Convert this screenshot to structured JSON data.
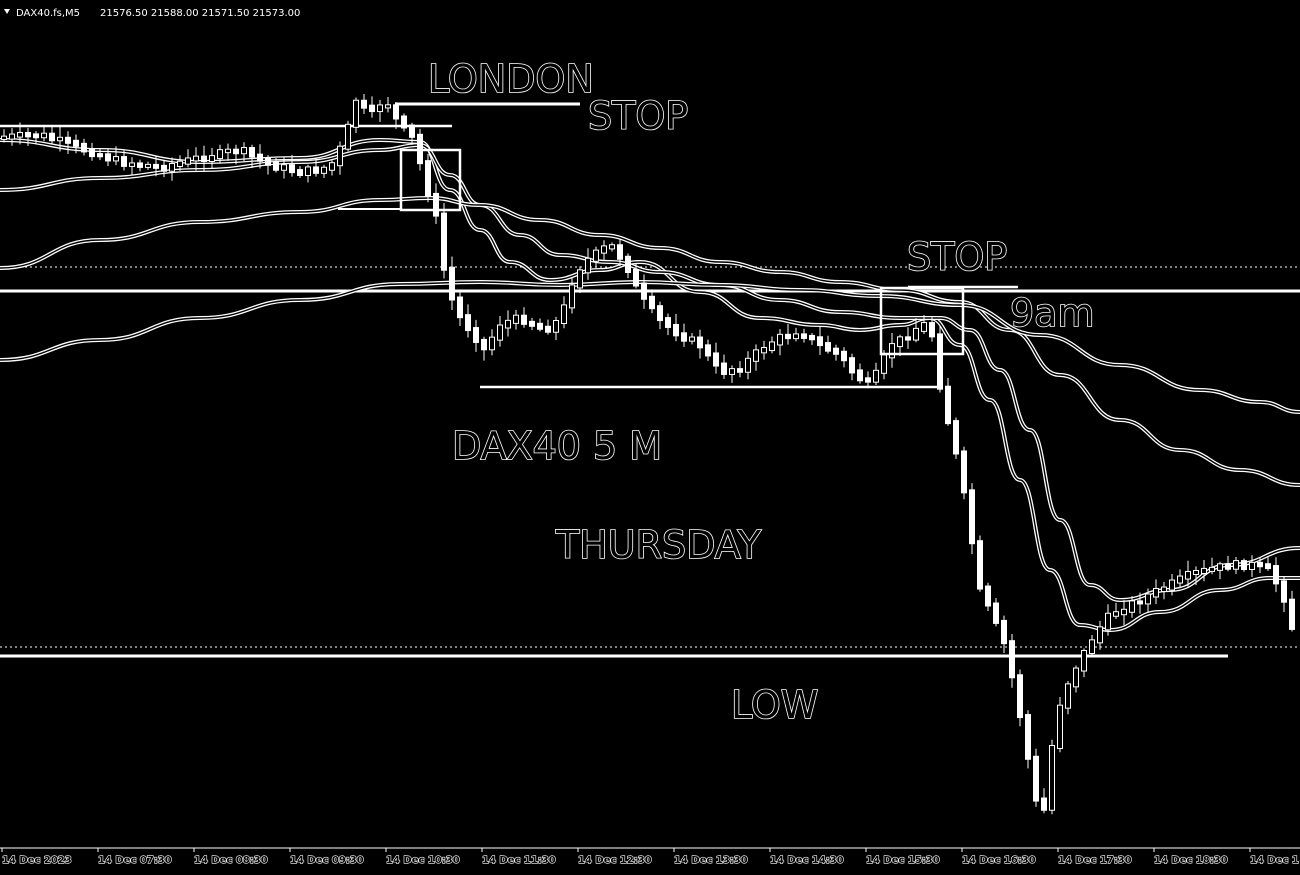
{
  "header": {
    "symbol": "DAX40.fs,M5",
    "ohlc": "21576.50 21588.00 21571.50 21573.00"
  },
  "chart_data": {
    "type": "candlestick",
    "title": "DAX40 5 M",
    "subtitle": "THURSDAY",
    "instrument": "DAX40",
    "timeframe": "M5",
    "x_ticks": [
      "14 Dec 2023",
      "14 Dec 07:30",
      "14 Dec 08:30",
      "14 Dec 09:30",
      "14 Dec 10:30",
      "14 Dec 11:30",
      "14 Dec 12:30",
      "14 Dec 13:30",
      "14 Dec 14:30",
      "14 Dec 15:30",
      "14 Dec 16:30",
      "14 Dec 17:30",
      "14 Dec 18:30",
      "14 Dec 19:30"
    ],
    "x_tick_display": [
      "14 Dec 2023",
      "14 Dec 07:30",
      "14 Dec 08:30",
      "14 Dec 09:30",
      "14 Dec 10:30",
      "14 Dec 11:30",
      "14 Dec 12:30",
      "14 Dec 13:30",
      "14 Dec 14:30",
      "14 Dec 15:30",
      "14 Dec 16:30",
      "14 Dec 17:30",
      "14 Dec 18:30",
      "14 Dec 1"
    ],
    "price_range_approx": [
      21420,
      21720
    ],
    "annotations": {
      "london": "LONDON",
      "stop1": "STOP",
      "stop2": "STOP",
      "nine_am": "9am",
      "title": "DAX40 5 M",
      "day": "THURSDAY",
      "low": "LOW"
    },
    "key_price_levels_approx": {
      "upper_dotted": 21640,
      "upper_solid": 21633,
      "lower_solid": 21510,
      "lower_dotted": 21512
    },
    "colors": {
      "background": "#000000",
      "foreground": "#ffffff"
    },
    "grid": false
  }
}
